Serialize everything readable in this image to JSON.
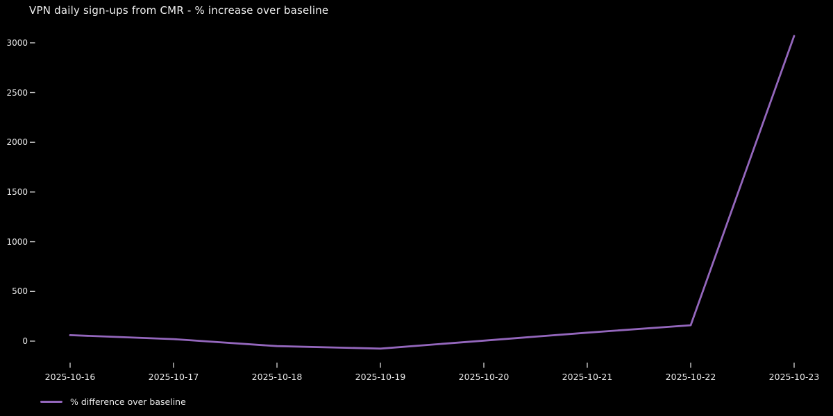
{
  "chart_data": {
    "type": "line",
    "title": "VPN daily sign-ups from CMR - % increase over baseline",
    "categories": [
      "2025-10-16",
      "2025-10-17",
      "2025-10-18",
      "2025-10-19",
      "2025-10-20",
      "2025-10-21",
      "2025-10-22",
      "2025-10-23"
    ],
    "series": [
      {
        "name": "% difference over baseline",
        "values": [
          60,
          20,
          -50,
          -75,
          5,
          85,
          160,
          3070
        ],
        "color": "#9467bd"
      }
    ],
    "yticks": [
      0,
      500,
      1000,
      1500,
      2000,
      2500,
      3000
    ],
    "ylim": [
      -230,
      3140
    ],
    "xlabel": "",
    "ylabel": "",
    "grid": false,
    "legend": {
      "label": "% difference over baseline",
      "position": "below-axis-lower-left"
    },
    "colors": {
      "background": "#000000",
      "text": "#e9e9e9",
      "title_text": "#f2f2f2",
      "tick_mark": "#c8c8c8",
      "line": "#9467bd"
    }
  }
}
